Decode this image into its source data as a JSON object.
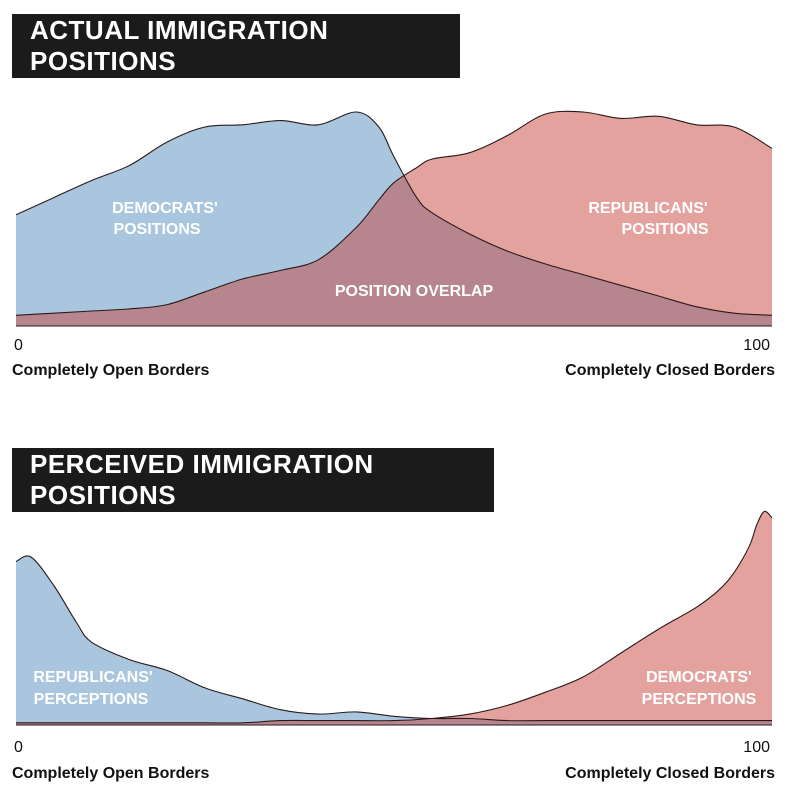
{
  "chart_data": [
    {
      "type": "area",
      "title": "ACTUAL IMMIGRATION POSITIONS",
      "x_ticks": [
        "0",
        "100"
      ],
      "x_left_label": "Completely Open Borders",
      "x_right_label": "Completely Closed Borders",
      "xlim": [
        0,
        100
      ],
      "ylim": [
        0,
        1
      ],
      "grid": false,
      "x": [
        0,
        5,
        10,
        15,
        20,
        25,
        30,
        35,
        40,
        45,
        48,
        50,
        53,
        55,
        60,
        65,
        70,
        75,
        80,
        85,
        90,
        95,
        100
      ],
      "series": [
        {
          "name": "DEMOCRATS' POSITIONS",
          "color": "#a9c6de",
          "values": [
            0.52,
            0.6,
            0.68,
            0.75,
            0.86,
            0.93,
            0.94,
            0.96,
            0.94,
            1.0,
            0.93,
            0.79,
            0.6,
            0.53,
            0.43,
            0.35,
            0.29,
            0.24,
            0.19,
            0.14,
            0.09,
            0.06,
            0.05
          ]
        },
        {
          "name": "REPUBLICANS' POSITIONS",
          "color": "#e3a29d",
          "values": [
            0.05,
            0.06,
            0.07,
            0.08,
            0.1,
            0.16,
            0.22,
            0.26,
            0.31,
            0.46,
            0.59,
            0.67,
            0.74,
            0.78,
            0.81,
            0.89,
            0.99,
            1.0,
            0.97,
            0.98,
            0.94,
            0.93,
            0.83
          ]
        }
      ],
      "annotations": {
        "democrats": [
          "DEMOCRATS'",
          "POSITIONS"
        ],
        "republicans": [
          "REPUBLICANS'",
          "POSITIONS"
        ],
        "overlap": "POSITION OVERLAP"
      },
      "overlap_color": "#b6858e"
    },
    {
      "type": "area",
      "title": "PERCEIVED IMMIGRATION POSITIONS",
      "x_ticks": [
        "0",
        "100"
      ],
      "x_left_label": "Completely Open Borders",
      "x_right_label": "Completely Closed Borders",
      "xlim": [
        0,
        100
      ],
      "ylim": [
        0,
        1
      ],
      "grid": false,
      "x": [
        0,
        2,
        5,
        8,
        10,
        15,
        20,
        25,
        30,
        35,
        40,
        45,
        50,
        55,
        60,
        65,
        70,
        75,
        80,
        85,
        90,
        93,
        95,
        97,
        98,
        99,
        100
      ],
      "series": [
        {
          "name": "REPUBLICANS' PERCEPTIONS",
          "color": "#a9c6de",
          "values": [
            0.75,
            0.77,
            0.64,
            0.47,
            0.38,
            0.3,
            0.25,
            0.17,
            0.12,
            0.07,
            0.05,
            0.06,
            0.04,
            0.03,
            0.03,
            0.02,
            0.02,
            0.02,
            0.02,
            0.02,
            0.02,
            0.02,
            0.02,
            0.02,
            0.02,
            0.02,
            0.02
          ]
        },
        {
          "name": "DEMOCRATS' PERCEPTIONS",
          "color": "#e3a29d",
          "values": [
            0.01,
            0.01,
            0.01,
            0.01,
            0.01,
            0.01,
            0.01,
            0.01,
            0.01,
            0.02,
            0.02,
            0.02,
            0.02,
            0.03,
            0.05,
            0.09,
            0.15,
            0.22,
            0.33,
            0.44,
            0.54,
            0.62,
            0.7,
            0.82,
            0.92,
            0.98,
            0.95
          ]
        }
      ],
      "annotations": {
        "republicans": [
          "REPUBLICANS'",
          "PERCEPTIONS"
        ],
        "democrats": [
          "DEMOCRATS'",
          "PERCEPTIONS"
        ]
      },
      "overlap_color": "#b6858e"
    }
  ]
}
